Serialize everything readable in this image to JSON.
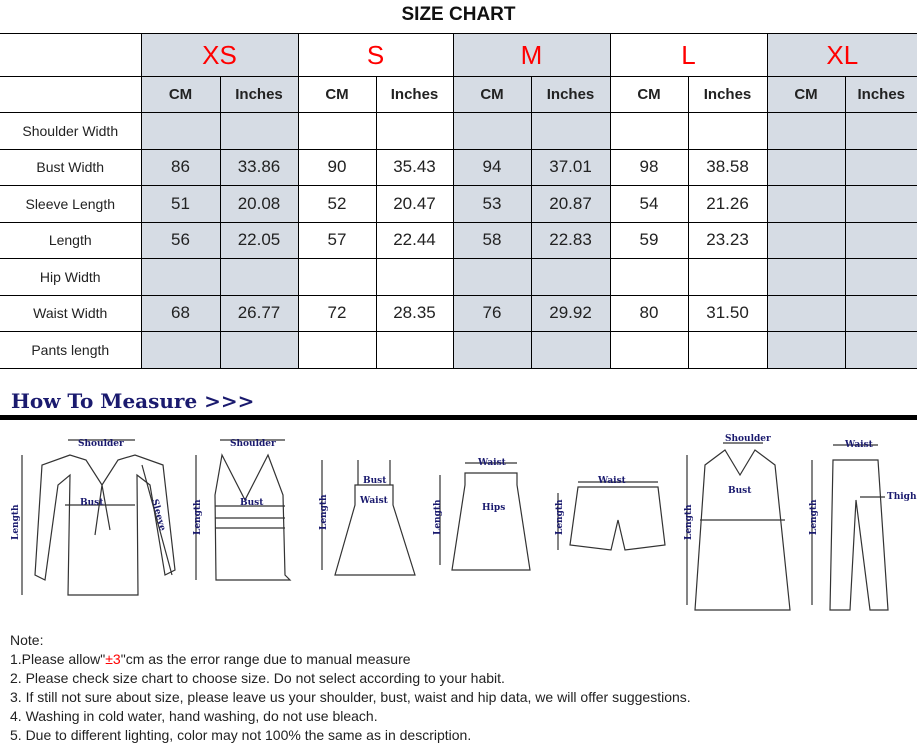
{
  "title": "SIZE CHART",
  "sizes": [
    "XS",
    "S",
    "M",
    "L",
    "XL"
  ],
  "units": [
    "CM",
    "Inches"
  ],
  "rows": [
    {
      "label": "Shoulder Width",
      "values": [
        "",
        "",
        "",
        "",
        "",
        "",
        "",
        "",
        "",
        ""
      ]
    },
    {
      "label": "Bust Width",
      "values": [
        "86",
        "33.86",
        "90",
        "35.43",
        "94",
        "37.01",
        "98",
        "38.58",
        "",
        ""
      ]
    },
    {
      "label": "Sleeve Length",
      "values": [
        "51",
        "20.08",
        "52",
        "20.47",
        "53",
        "20.87",
        "54",
        "21.26",
        "",
        ""
      ]
    },
    {
      "label": "Length",
      "values": [
        "56",
        "22.05",
        "57",
        "22.44",
        "58",
        "22.83",
        "59",
        "23.23",
        "",
        ""
      ]
    },
    {
      "label": "Hip Width",
      "values": [
        "",
        "",
        "",
        "",
        "",
        "",
        "",
        "",
        "",
        ""
      ]
    },
    {
      "label": "Waist Width",
      "values": [
        "68",
        "26.77",
        "72",
        "28.35",
        "76",
        "29.92",
        "80",
        "31.50",
        "",
        ""
      ]
    },
    {
      "label": "Pants length",
      "values": [
        "",
        "",
        "",
        "",
        "",
        "",
        "",
        "",
        "",
        ""
      ]
    }
  ],
  "colors": {
    "shaded": "#d6dce4",
    "size_label": "#ff0000",
    "measure_text": "#1a1a6e"
  },
  "how_to_measure": {
    "heading": "How To Measure >>>",
    "labels": {
      "shoulder": "Shoulder",
      "bust": "Bust",
      "sleeve": "Sleeve",
      "length": "Length",
      "waist": "Waist",
      "hips": "Hips",
      "thigh": "Thigh"
    }
  },
  "notes": {
    "heading": "Note:",
    "n1_pre": "1.Please allow\"",
    "n1_red": "±3",
    "n1_post": "\"cm as the error range due to manual measure",
    "n2": "2. Please check size chart to choose size. Do not select according to your habit.",
    "n3": "3. If still not sure about size, please leave us your shoulder, bust, waist and hip data, we will offer suggestions.",
    "n4": "4. Washing in cold water, hand washing, do not use bleach.",
    "n5": "5. Due to different lighting, color may not 100% the same as in description."
  }
}
